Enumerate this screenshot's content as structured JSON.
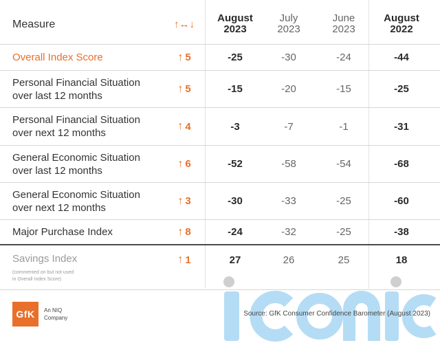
{
  "header": {
    "measure": "Measure",
    "change": "↑↔↓",
    "col_aug23": [
      "August",
      "2023"
    ],
    "col_jul23": [
      "July",
      "2023"
    ],
    "col_jun23": [
      "June",
      "2023"
    ],
    "col_aug22": [
      "August",
      "2022"
    ]
  },
  "rows": [
    {
      "measure": [
        "Overall Index Score"
      ],
      "change": "5",
      "aug23": "-25",
      "jul23": "-30",
      "jun23": "-24",
      "aug22": "-44",
      "highlight": true
    },
    {
      "measure": [
        "Personal Financial Situation",
        "over last 12 months"
      ],
      "change": "5",
      "aug23": "-15",
      "jul23": "-20",
      "jun23": "-15",
      "aug22": "-25"
    },
    {
      "measure": [
        "Personal Financial Situation",
        "over next 12 months"
      ],
      "change": "4",
      "aug23": "-3",
      "jul23": "-7",
      "jun23": "-1",
      "aug22": "-31"
    },
    {
      "measure": [
        "General Economic Situation",
        "over last 12 months"
      ],
      "change": "6",
      "aug23": "-52",
      "jul23": "-58",
      "jun23": "-54",
      "aug22": "-68"
    },
    {
      "measure": [
        "General Economic Situation",
        "over next 12 months"
      ],
      "change": "3",
      "aug23": "-30",
      "jul23": "-33",
      "jun23": "-25",
      "aug22": "-60"
    },
    {
      "measure": [
        "Major Purchase Index"
      ],
      "change": "8",
      "aug23": "-24",
      "jul23": "-32",
      "jun23": "-25",
      "aug22": "-38"
    }
  ],
  "savings": {
    "measure": "Savings Index",
    "note": [
      "(commented on but not used",
      "in Overall Index Score)"
    ],
    "change": "1",
    "aug23": "27",
    "jul23": "26",
    "jun23": "25",
    "aug22": "18"
  },
  "footer": {
    "logo": "GfK",
    "logo_sub": [
      "An NIQ",
      "Company"
    ],
    "source": "Source: GfK Consumer Confidence Barometer (August 2023)",
    "watermark": "ICONIC"
  },
  "colors": {
    "accent": "#e8702a",
    "watermark": "#b5dcf5"
  }
}
